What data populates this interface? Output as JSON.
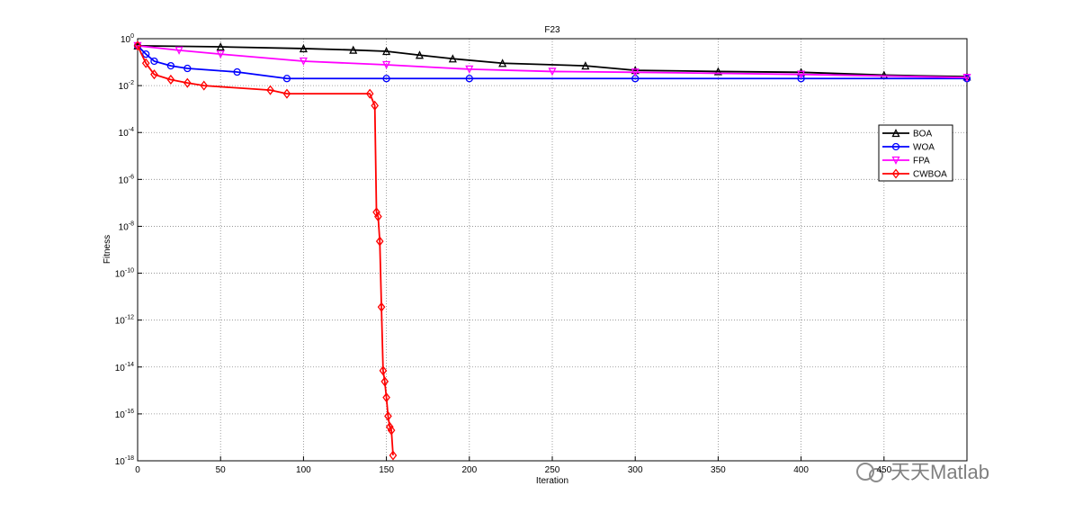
{
  "chart_data": {
    "type": "line",
    "title": "F23",
    "xlabel": "Iteration",
    "ylabel": "Fitness",
    "xlim": [
      0,
      500
    ],
    "xticks": [
      0,
      50,
      100,
      150,
      200,
      250,
      300,
      350,
      400,
      450
    ],
    "ylim": [
      1e-18,
      1
    ],
    "log_y": true,
    "grid": true,
    "legend": "upper right",
    "yticks": [
      {
        "value": 1,
        "label": "10^0"
      },
      {
        "value": 0.01,
        "label": "10^-2"
      },
      {
        "value": 0.0001,
        "label": "10^-4"
      },
      {
        "value": 1e-06,
        "label": "10^-6"
      },
      {
        "value": 1e-08,
        "label": "10^-8"
      },
      {
        "value": 1e-10,
        "label": "10^-10"
      },
      {
        "value": 1e-12,
        "label": "10^-12"
      },
      {
        "value": 1e-14,
        "label": "10^-14"
      },
      {
        "value": 1e-16,
        "label": "10^-16"
      },
      {
        "value": 1e-18,
        "label": "10^-18"
      }
    ],
    "series": [
      {
        "name": "BOA",
        "color": "#000000",
        "marker": "triangle-up",
        "x": [
          0,
          50,
          100,
          130,
          150,
          170,
          190,
          220,
          270,
          300,
          350,
          400,
          450,
          500
        ],
        "values": [
          0.5,
          0.45,
          0.38,
          0.33,
          0.29,
          0.2,
          0.14,
          0.09,
          0.07,
          0.045,
          0.04,
          0.037,
          0.028,
          0.024
        ]
      },
      {
        "name": "WOA",
        "color": "#0000ff",
        "marker": "circle",
        "x": [
          0,
          5,
          10,
          20,
          30,
          60,
          90,
          150,
          200,
          300,
          400,
          500
        ],
        "values": [
          0.5,
          0.22,
          0.11,
          0.07,
          0.054,
          0.038,
          0.02,
          0.02,
          0.02,
          0.02,
          0.02,
          0.02
        ]
      },
      {
        "name": "FPA",
        "color": "#ff00ff",
        "marker": "triangle-down",
        "x": [
          0,
          25,
          50,
          100,
          150,
          200,
          250,
          300,
          400,
          500
        ],
        "values": [
          0.5,
          0.32,
          0.22,
          0.11,
          0.077,
          0.05,
          0.04,
          0.037,
          0.03,
          0.022
        ]
      },
      {
        "name": "CWBOA",
        "color": "#ff0000",
        "marker": "diamond",
        "x": [
          0,
          5,
          10,
          20,
          30,
          40,
          80,
          90,
          140,
          143,
          144,
          145,
          146,
          147,
          148,
          149,
          150,
          151,
          152,
          153,
          154
        ],
        "values": [
          0.5,
          0.09,
          0.03,
          0.018,
          0.013,
          0.01,
          0.0064,
          0.0045,
          0.0045,
          0.0014,
          4e-08,
          2.6e-08,
          2.3e-09,
          3.6e-12,
          7e-15,
          2.4e-15,
          5e-16,
          8e-17,
          2.8e-17,
          2e-17,
          1.7e-18
        ]
      }
    ]
  },
  "watermark": "天天Matlab"
}
